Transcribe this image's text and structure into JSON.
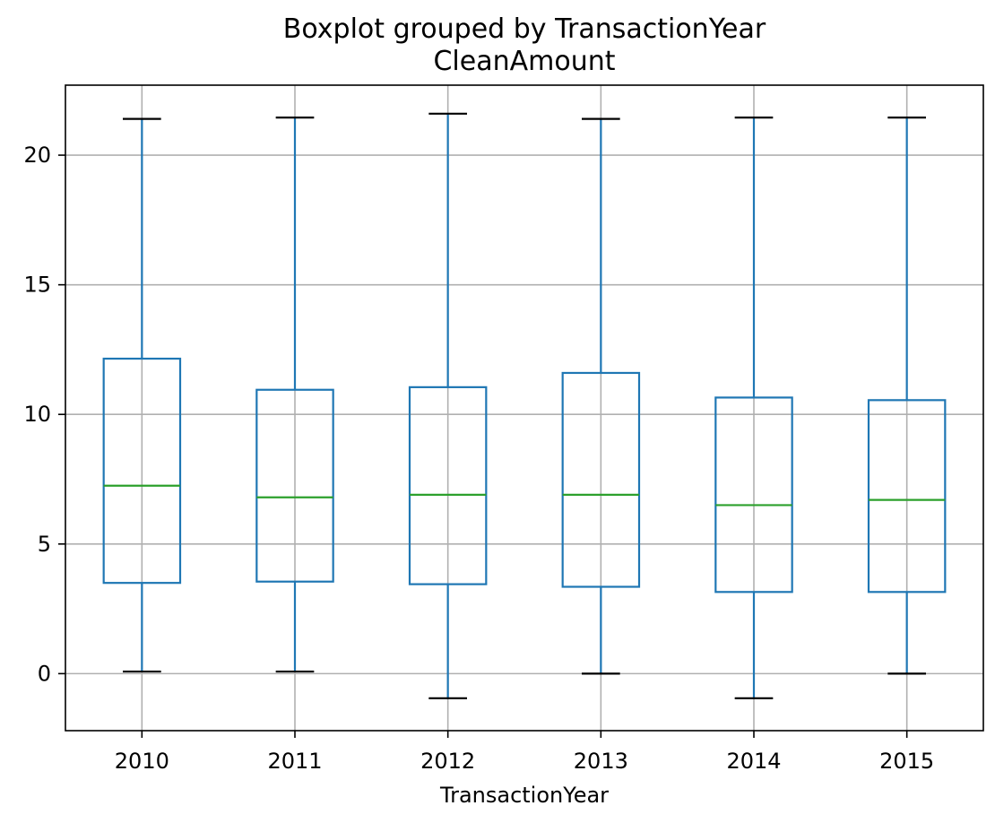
{
  "chart_data": {
    "type": "boxplot",
    "title": "Boxplot grouped by TransactionYear",
    "subtitle": "CleanAmount",
    "xlabel": "TransactionYear",
    "ylabel": "",
    "ylim": [
      -2.2,
      22.7
    ],
    "yticks": [
      0,
      5,
      10,
      15,
      20
    ],
    "grid": true,
    "categories": [
      "2010",
      "2011",
      "2012",
      "2013",
      "2014",
      "2015"
    ],
    "boxes": [
      {
        "whisker_low": 0.08,
        "q1": 3.5,
        "median": 7.25,
        "q3": 12.15,
        "whisker_high": 21.4
      },
      {
        "whisker_low": 0.08,
        "q1": 3.55,
        "median": 6.8,
        "q3": 10.95,
        "whisker_high": 21.45
      },
      {
        "whisker_low": -0.95,
        "q1": 3.45,
        "median": 6.9,
        "q3": 11.05,
        "whisker_high": 21.6
      },
      {
        "whisker_low": 0.0,
        "q1": 3.35,
        "median": 6.9,
        "q3": 11.6,
        "whisker_high": 21.4
      },
      {
        "whisker_low": -0.95,
        "q1": 3.15,
        "median": 6.5,
        "q3": 10.65,
        "whisker_high": 21.45
      },
      {
        "whisker_low": 0.0,
        "q1": 3.15,
        "median": 6.7,
        "q3": 10.55,
        "whisker_high": 21.45
      }
    ],
    "colors": {
      "box": "#1f77b4",
      "whisker": "#1f77b4",
      "cap": "#000000",
      "median": "#2ca02c",
      "grid": "#b0b0b0"
    }
  }
}
